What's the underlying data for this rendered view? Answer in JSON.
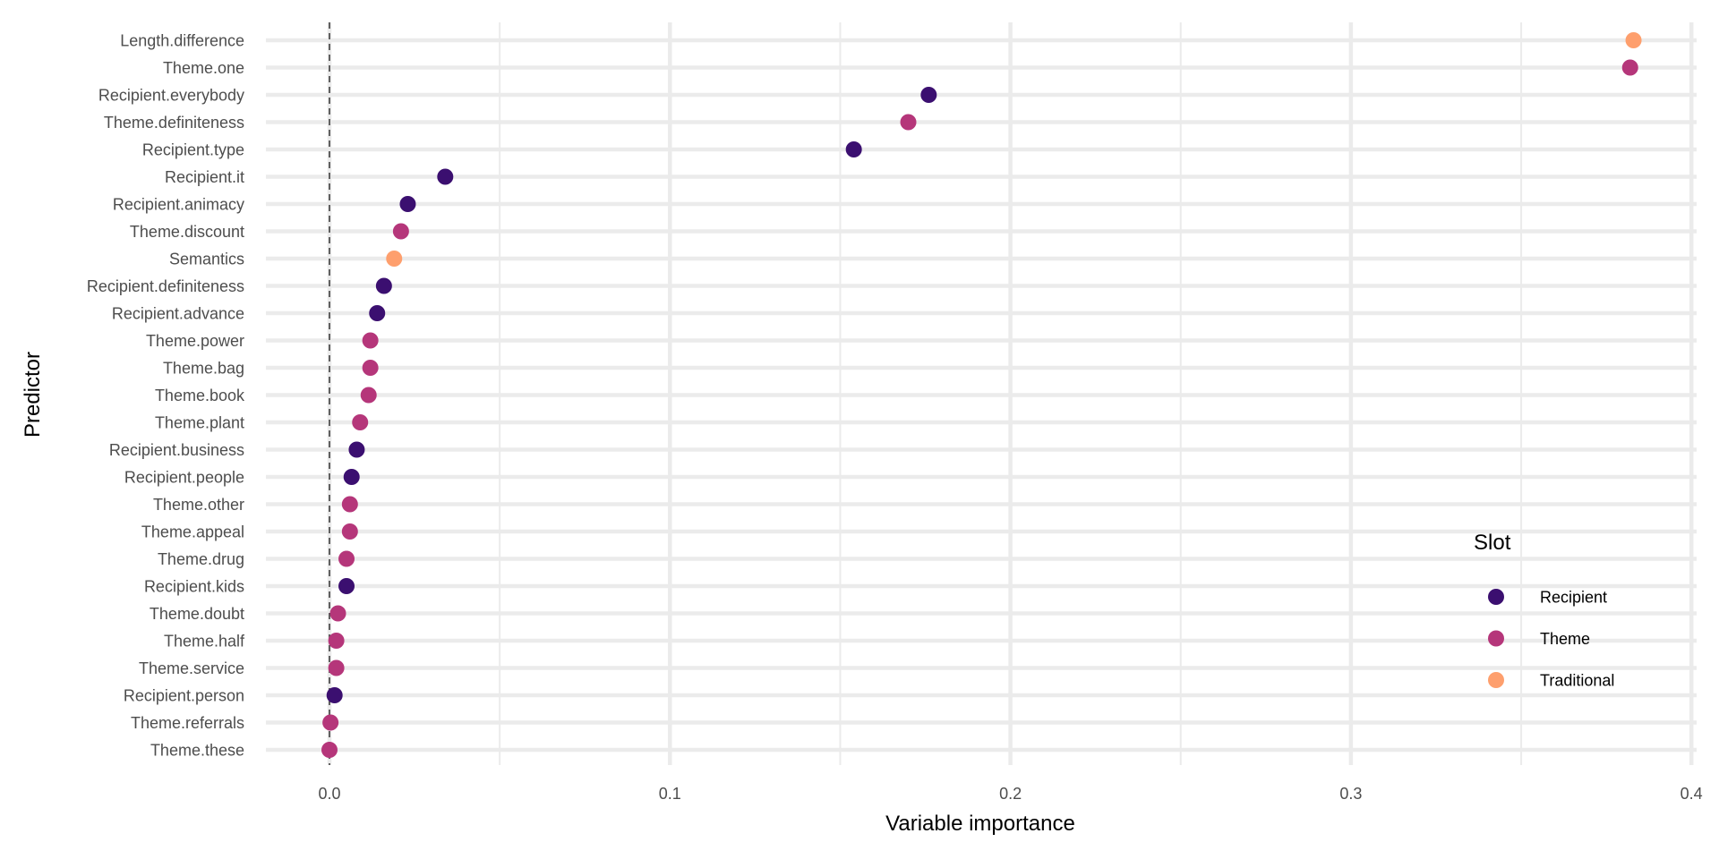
{
  "chart_data": {
    "type": "scatter",
    "xlabel": "Variable importance",
    "ylabel": "Predictor",
    "xlim": [
      -0.02,
      0.4
    ],
    "x_ticks": [
      0.0,
      0.1,
      0.2,
      0.3,
      0.4
    ],
    "x_tick_labels": [
      "0.0",
      "0.1",
      "0.2",
      "0.3",
      "0.4"
    ],
    "x_minor_ticks": [
      0.05,
      0.15,
      0.25,
      0.35
    ],
    "reference_line": {
      "x": 0,
      "style": "dashed"
    },
    "grid": true,
    "legend": {
      "title": "Slot",
      "position": "right",
      "entries": [
        {
          "name": "Recipient",
          "color": "#3b0f70"
        },
        {
          "name": "Theme",
          "color": "#b5367a"
        },
        {
          "name": "Traditional",
          "color": "#fe9f6d"
        }
      ]
    },
    "points": [
      {
        "predictor": "Length.difference",
        "value": 0.383,
        "slot": "Traditional"
      },
      {
        "predictor": "Theme.one",
        "value": 0.382,
        "slot": "Theme"
      },
      {
        "predictor": "Recipient.everybody",
        "value": 0.176,
        "slot": "Recipient"
      },
      {
        "predictor": "Theme.definiteness",
        "value": 0.17,
        "slot": "Theme"
      },
      {
        "predictor": "Recipient.type",
        "value": 0.154,
        "slot": "Recipient"
      },
      {
        "predictor": "Recipient.it",
        "value": 0.034,
        "slot": "Recipient"
      },
      {
        "predictor": "Recipient.animacy",
        "value": 0.023,
        "slot": "Recipient"
      },
      {
        "predictor": "Theme.discount",
        "value": 0.021,
        "slot": "Theme"
      },
      {
        "predictor": "Semantics",
        "value": 0.019,
        "slot": "Traditional"
      },
      {
        "predictor": "Recipient.definiteness",
        "value": 0.016,
        "slot": "Recipient"
      },
      {
        "predictor": "Recipient.advance",
        "value": 0.014,
        "slot": "Recipient"
      },
      {
        "predictor": "Theme.power",
        "value": 0.012,
        "slot": "Theme"
      },
      {
        "predictor": "Theme.bag",
        "value": 0.012,
        "slot": "Theme"
      },
      {
        "predictor": "Theme.book",
        "value": 0.0115,
        "slot": "Theme"
      },
      {
        "predictor": "Theme.plant",
        "value": 0.009,
        "slot": "Theme"
      },
      {
        "predictor": "Recipient.business",
        "value": 0.008,
        "slot": "Recipient"
      },
      {
        "predictor": "Recipient.people",
        "value": 0.0065,
        "slot": "Recipient"
      },
      {
        "predictor": "Theme.other",
        "value": 0.006,
        "slot": "Theme"
      },
      {
        "predictor": "Theme.appeal",
        "value": 0.006,
        "slot": "Theme"
      },
      {
        "predictor": "Theme.drug",
        "value": 0.005,
        "slot": "Theme"
      },
      {
        "predictor": "Recipient.kids",
        "value": 0.005,
        "slot": "Recipient"
      },
      {
        "predictor": "Theme.doubt",
        "value": 0.0025,
        "slot": "Theme"
      },
      {
        "predictor": "Theme.half",
        "value": 0.002,
        "slot": "Theme"
      },
      {
        "predictor": "Theme.service",
        "value": 0.002,
        "slot": "Theme"
      },
      {
        "predictor": "Recipient.person",
        "value": 0.0015,
        "slot": "Recipient"
      },
      {
        "predictor": "Theme.referrals",
        "value": 0.0003,
        "slot": "Theme"
      },
      {
        "predictor": "Theme.these",
        "value": 0.0,
        "slot": "Theme"
      }
    ]
  }
}
